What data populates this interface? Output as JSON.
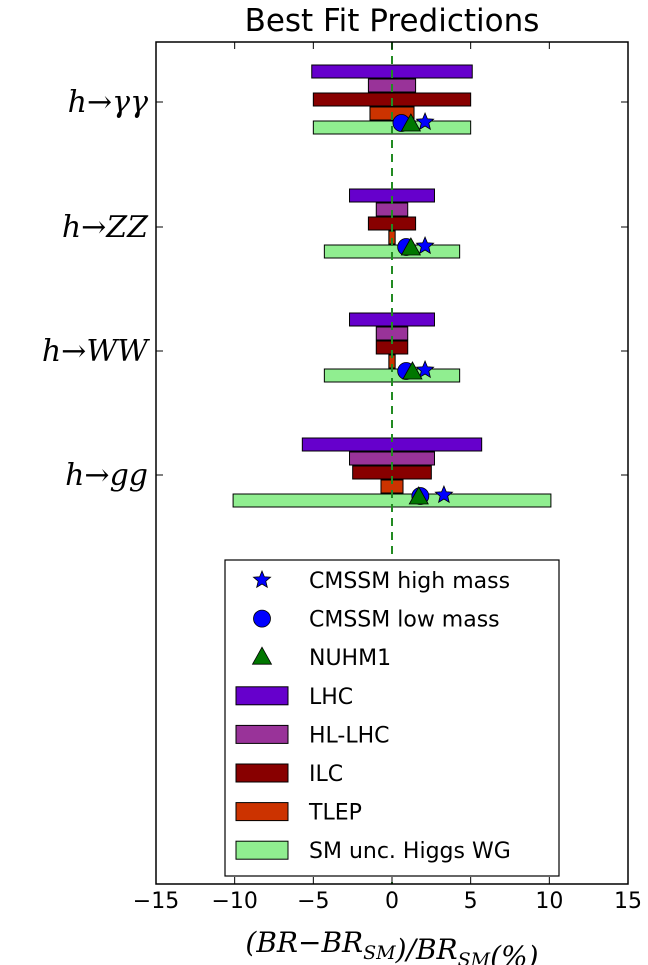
{
  "chart_data": {
    "type": "bar",
    "orientation": "horizontal",
    "title": "Best Fit Predictions",
    "xlabel": "(BR−BR_SM)/BR_SM(%)",
    "xlim": [
      -15,
      15
    ],
    "xticks": [
      -15,
      -10,
      -5,
      0,
      5,
      10,
      15
    ],
    "xtick_labels": [
      "−15",
      "−10",
      "−5",
      "0",
      "5",
      "10",
      "15"
    ],
    "reference_line": {
      "x": 0,
      "style": "dashed",
      "color": "#228B22"
    },
    "categories": [
      {
        "label": "h→γγ",
        "base": "h→",
        "sub": "γγ"
      },
      {
        "label": "h→ZZ",
        "base": "h→",
        "sub": "ZZ"
      },
      {
        "label": "h→WW",
        "base": "h→",
        "sub": "WW"
      },
      {
        "label": "h→gg",
        "base": "h→",
        "sub": "gg"
      }
    ],
    "bar_series": [
      {
        "name": "LHC",
        "color": "#6600CC",
        "ranges": [
          [
            -5.1,
            5.1
          ],
          [
            -2.7,
            2.7
          ],
          [
            -2.7,
            2.7
          ],
          [
            -5.7,
            5.7
          ]
        ]
      },
      {
        "name": "HL-LHC",
        "color": "#993399",
        "ranges": [
          [
            -1.5,
            1.5
          ],
          [
            -1.0,
            1.0
          ],
          [
            -1.0,
            1.0
          ],
          [
            -2.7,
            2.7
          ]
        ]
      },
      {
        "name": "ILC",
        "color": "#880000",
        "ranges": [
          [
            -5.0,
            5.0
          ],
          [
            -1.5,
            1.5
          ],
          [
            -1.0,
            1.0
          ],
          [
            -2.5,
            2.5
          ]
        ]
      },
      {
        "name": "TLEP",
        "color": "#CC3300",
        "ranges": [
          [
            -1.4,
            1.4
          ],
          [
            -0.2,
            0.2
          ],
          [
            -0.2,
            0.2
          ],
          [
            -0.7,
            0.7
          ]
        ]
      },
      {
        "name": "SM unc. Higgs WG",
        "color": "#90EE90",
        "ranges": [
          [
            -5.0,
            5.0
          ],
          [
            -4.3,
            4.3
          ],
          [
            -4.3,
            4.3
          ],
          [
            -10.1,
            10.1
          ]
        ]
      }
    ],
    "point_series": [
      {
        "name": "CMSSM high mass",
        "marker": "star",
        "color": "#0000FF",
        "values": [
          2.1,
          2.1,
          2.1,
          3.3
        ]
      },
      {
        "name": "CMSSM low mass",
        "marker": "circle",
        "color": "#0000FF",
        "values": [
          0.6,
          0.9,
          0.9,
          1.8
        ]
      },
      {
        "name": "NUHM1",
        "marker": "triangle",
        "color": "#007700",
        "values": [
          1.2,
          1.2,
          1.3,
          1.7
        ]
      }
    ],
    "grid": false,
    "legend_position": "lower-center"
  }
}
